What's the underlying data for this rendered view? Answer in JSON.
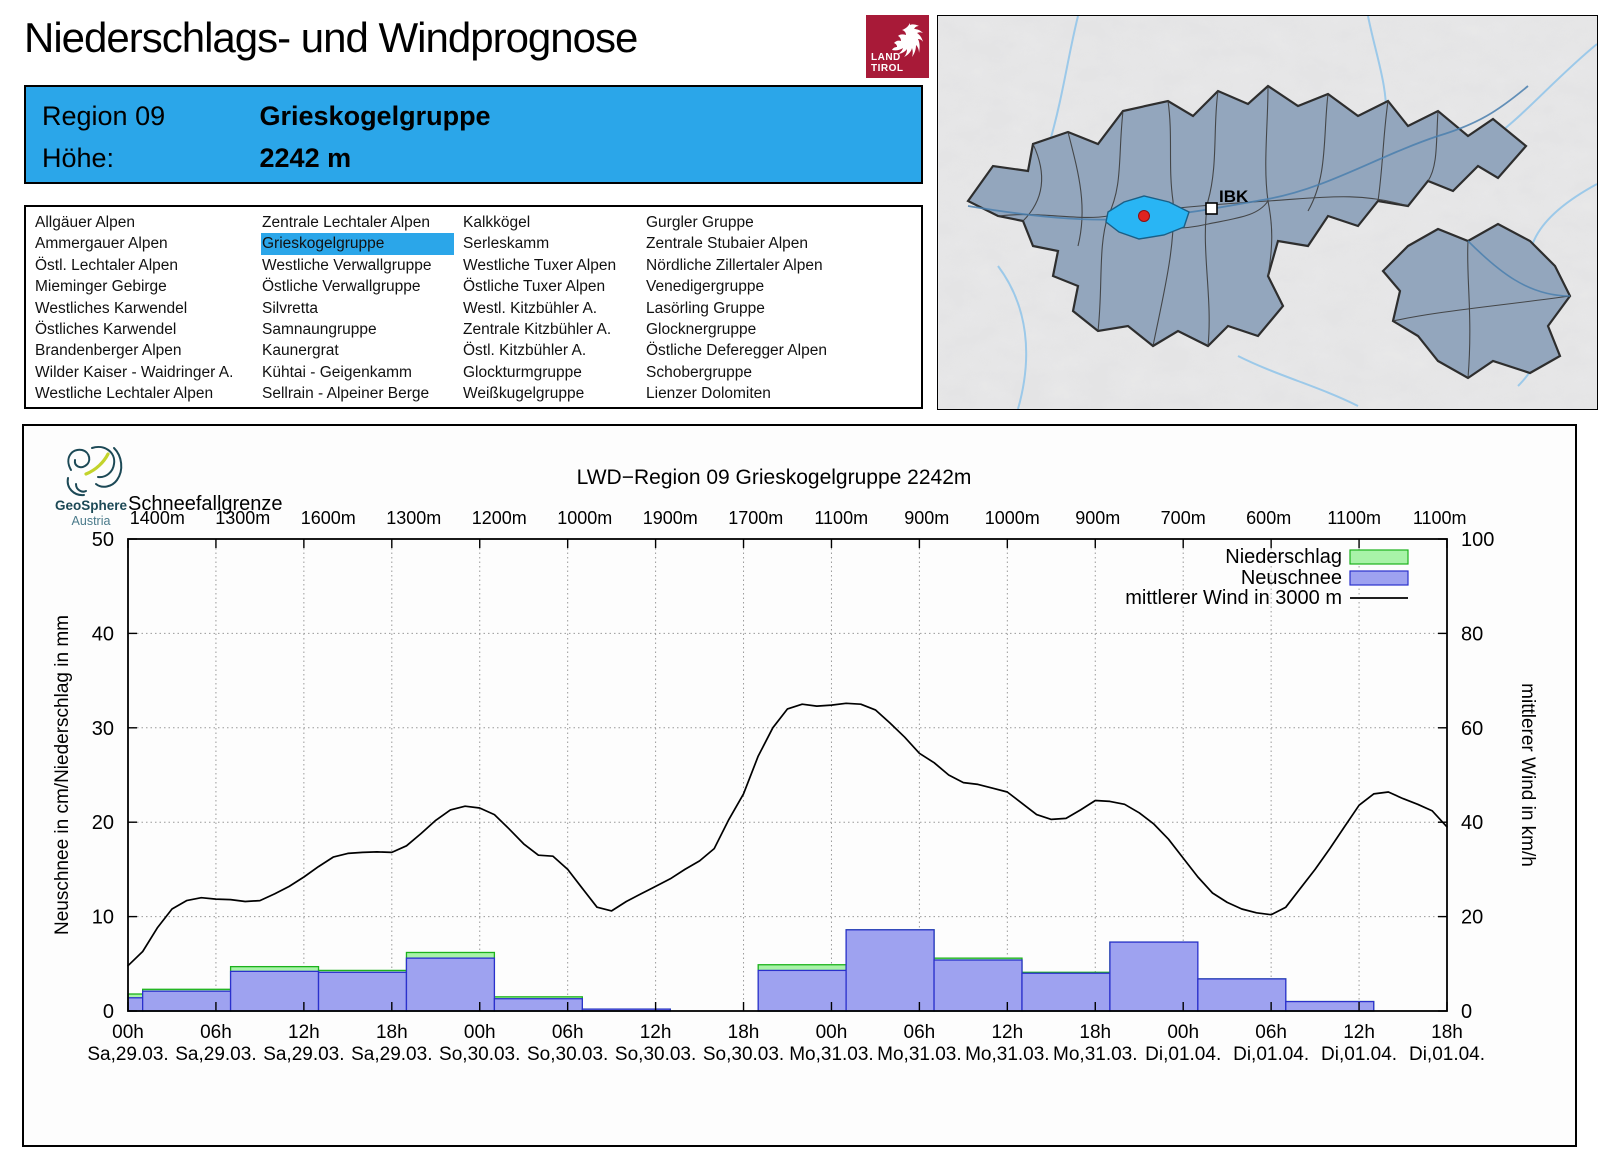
{
  "header": {
    "title": "Niederschlags- und Windprognose",
    "logo": {
      "line1": "LAND",
      "line2": "TIROL"
    }
  },
  "region_box": {
    "region_label": "Region 09",
    "region_name": "Grieskogelgruppe",
    "altitude_label": "Höhe:",
    "altitude_value": "2242 m"
  },
  "region_list": {
    "selected": "Grieskogelgruppe",
    "columns": [
      [
        "Allgäuer Alpen",
        "Ammergauer Alpen",
        "Östl. Lechtaler Alpen",
        "Mieminger Gebirge",
        "Westliches Karwendel",
        "Östliches Karwendel",
        "Brandenberger Alpen",
        "Wilder Kaiser - Waidringer A.",
        "Westliche Lechtaler Alpen"
      ],
      [
        "Zentrale Lechtaler Alpen",
        "Grieskogelgruppe",
        "Westliche Verwallgruppe",
        "Östliche Verwallgruppe",
        "Silvretta",
        "Samnaungruppe",
        "Kaunergrat",
        "Kühtai - Geigenkamm",
        "Sellrain - Alpeiner Berge"
      ],
      [
        "Kalkkögel",
        "Serleskamm",
        "Westliche Tuxer Alpen",
        "Östliche Tuxer Alpen",
        "Westl. Kitzbühler A.",
        "Zentrale Kitzbühler A.",
        "Östl. Kitzbühler A.",
        "Glockturmgruppe",
        "Weißkugelgruppe"
      ],
      [
        "Gurgler Gruppe",
        "Zentrale Stubaier Alpen",
        "Nördliche Zillertaler Alpen",
        "Venedigergruppe",
        "Lasörling Gruppe",
        "Glocknergruppe",
        "Östliche Deferegger Alpen",
        "Schobergruppe",
        "Lienzer Dolomiten"
      ]
    ]
  },
  "map": {
    "city_label": "IBK"
  },
  "logos": {
    "geosphere": {
      "line1": "GeoSphere",
      "line2": "Austria"
    }
  },
  "chart_data": {
    "type": "composite",
    "title": "LWD−Region 09 Grieskogelgruppe 2242m",
    "snowline_label": "Schneefallgrenze",
    "snowline_values": [
      "1400m",
      "1300m",
      "1600m",
      "1300m",
      "1200m",
      "1000m",
      "1900m",
      "1700m",
      "1100m",
      "900m",
      "1000m",
      "900m",
      "700m",
      "600m",
      "1100m",
      "1100m"
    ],
    "left_axis": {
      "label": "Neuschnee in cm/Niederschlag in mm",
      "min": 0,
      "max": 50,
      "ticks": [
        0,
        10,
        20,
        30,
        40,
        50
      ]
    },
    "right_axis": {
      "label": "mittlerer Wind in km/h",
      "min": 0,
      "max": 100,
      "ticks": [
        0,
        20,
        40,
        60,
        80,
        100
      ]
    },
    "total_hours": 90,
    "x_ticks": [
      {
        "t": "00h",
        "d": "Sa,29.03."
      },
      {
        "t": "06h",
        "d": "Sa,29.03."
      },
      {
        "t": "12h",
        "d": "Sa,29.03."
      },
      {
        "t": "18h",
        "d": "Sa,29.03."
      },
      {
        "t": "00h",
        "d": "So,30.03."
      },
      {
        "t": "06h",
        "d": "So,30.03."
      },
      {
        "t": "12h",
        "d": "So,30.03."
      },
      {
        "t": "18h",
        "d": "So,30.03."
      },
      {
        "t": "00h",
        "d": "Mo,31.03."
      },
      {
        "t": "06h",
        "d": "Mo,31.03."
      },
      {
        "t": "12h",
        "d": "Mo,31.03."
      },
      {
        "t": "18h",
        "d": "Mo,31.03."
      },
      {
        "t": "00h",
        "d": "Di,01.04."
      },
      {
        "t": "06h",
        "d": "Di,01.04."
      },
      {
        "t": "12h",
        "d": "Di,01.04."
      },
      {
        "t": "18h",
        "d": "Di,01.04."
      }
    ],
    "bars": {
      "edges_hours": [
        0,
        1,
        7,
        13,
        19,
        25,
        31,
        37,
        43,
        49,
        55,
        61,
        67,
        73,
        79,
        85,
        90
      ],
      "series": [
        {
          "name": "Niederschlag",
          "unit": "mm",
          "fill": "#A8F3A8",
          "stroke": "#1CB21C",
          "values": [
            1.8,
            2.3,
            4.7,
            4.3,
            6.2,
            1.5,
            0.2,
            0,
            4.9,
            8.6,
            5.6,
            4.1,
            7.3,
            3.4,
            1.0,
            0
          ]
        },
        {
          "name": "Neuschnee",
          "unit": "cm",
          "fill": "#9EA2F0",
          "stroke": "#2B31CC",
          "values": [
            1.4,
            2.1,
            4.2,
            4.1,
            5.6,
            1.3,
            0.2,
            0,
            4.3,
            8.6,
            5.4,
            4.0,
            7.3,
            3.4,
            1.0,
            0
          ]
        }
      ]
    },
    "wind": {
      "name": "mittlerer Wind in 3000 m",
      "color": "#000000",
      "unit": "km/h",
      "points_kmh": [
        [
          0,
          9.6
        ],
        [
          1,
          12.6
        ],
        [
          2,
          17.6
        ],
        [
          3,
          21.6
        ],
        [
          4,
          23.4
        ],
        [
          5,
          24
        ],
        [
          6,
          23.7
        ],
        [
          7,
          23.6
        ],
        [
          8,
          23.2
        ],
        [
          9,
          23.4
        ],
        [
          10,
          24.8
        ],
        [
          11,
          26.4
        ],
        [
          12,
          28.4
        ],
        [
          13,
          30.6
        ],
        [
          14,
          32.6
        ],
        [
          15,
          33.4
        ],
        [
          16,
          33.6
        ],
        [
          17,
          33.7
        ],
        [
          18,
          33.6
        ],
        [
          19,
          35
        ],
        [
          20,
          37.6
        ],
        [
          21,
          40.4
        ],
        [
          22,
          42.6
        ],
        [
          23,
          43.4
        ],
        [
          24,
          43
        ],
        [
          25,
          41.6
        ],
        [
          26,
          38.6
        ],
        [
          27,
          35.4
        ],
        [
          28,
          33
        ],
        [
          29,
          32.8
        ],
        [
          30,
          30
        ],
        [
          31,
          26
        ],
        [
          32,
          22
        ],
        [
          33,
          21.2
        ],
        [
          34,
          23.2
        ],
        [
          35,
          24.8
        ],
        [
          36,
          26.4
        ],
        [
          37,
          28
        ],
        [
          38,
          30
        ],
        [
          39,
          31.8
        ],
        [
          40,
          34.4
        ],
        [
          41,
          40.6
        ],
        [
          42,
          46
        ],
        [
          43,
          54
        ],
        [
          44,
          60
        ],
        [
          45,
          64
        ],
        [
          46,
          65
        ],
        [
          47,
          64.6
        ],
        [
          48,
          64.8
        ],
        [
          49,
          65.2
        ],
        [
          50,
          65
        ],
        [
          51,
          63.8
        ],
        [
          52,
          61
        ],
        [
          53,
          58
        ],
        [
          54,
          54.6
        ],
        [
          55,
          52.6
        ],
        [
          56,
          50
        ],
        [
          57,
          48.4
        ],
        [
          58,
          48
        ],
        [
          59,
          47.2
        ],
        [
          60,
          46.4
        ],
        [
          61,
          44
        ],
        [
          62,
          41.6
        ],
        [
          63,
          40.6
        ],
        [
          64,
          40.8
        ],
        [
          65,
          42.6
        ],
        [
          66,
          44.6
        ],
        [
          67,
          44.4
        ],
        [
          68,
          43.8
        ],
        [
          69,
          42
        ],
        [
          70,
          39.6
        ],
        [
          71,
          36.4
        ],
        [
          72,
          32.4
        ],
        [
          73,
          28.4
        ],
        [
          74,
          25
        ],
        [
          75,
          23
        ],
        [
          76,
          21.6
        ],
        [
          77,
          20.8
        ],
        [
          78,
          20.4
        ],
        [
          79,
          22
        ],
        [
          80,
          26
        ],
        [
          81,
          30
        ],
        [
          82,
          34.4
        ],
        [
          83,
          39
        ],
        [
          84,
          43.6
        ],
        [
          85,
          46
        ],
        [
          86,
          46.4
        ],
        [
          87,
          45
        ],
        [
          88,
          43.8
        ],
        [
          89,
          42.4
        ],
        [
          90,
          39
        ]
      ]
    },
    "legend": [
      "Niederschlag",
      "Neuschnee",
      "mittlerer Wind in 3000 m"
    ],
    "legend_position": "top-right",
    "grid": true
  }
}
